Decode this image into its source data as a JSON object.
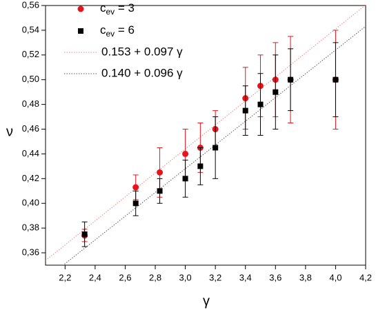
{
  "chart_data": {
    "type": "scatter",
    "x_label": "γ",
    "y_label": "ν",
    "x": [
      2.33,
      2.67,
      2.83,
      3.0,
      3.1,
      3.2,
      3.4,
      3.5,
      3.6,
      3.7,
      4.0
    ],
    "series": [
      {
        "name": "cev = 3",
        "color": "#e8141b",
        "marker": "circle",
        "values": [
          0.374,
          0.413,
          0.425,
          0.44,
          0.445,
          0.46,
          0.485,
          0.495,
          0.5,
          0.5,
          0.5
        ],
        "errors": [
          0.005,
          0.01,
          0.02,
          0.02,
          0.02,
          0.015,
          0.025,
          0.025,
          0.03,
          0.035,
          0.04
        ]
      },
      {
        "name": "cev = 6",
        "color": "#000000",
        "marker": "square",
        "values": [
          0.375,
          0.4,
          0.41,
          0.42,
          0.43,
          0.445,
          0.475,
          0.48,
          0.49,
          0.5,
          0.5
        ],
        "errors": [
          0.01,
          0.01,
          0.01,
          0.015,
          0.015,
          0.025,
          0.02,
          0.025,
          0.03,
          0.025,
          0.03
        ]
      }
    ],
    "fits": [
      {
        "name": "0.153 + 0.097 γ",
        "color": "#f08080",
        "intercept": 0.153,
        "slope": 0.097
      },
      {
        "name": "0.140 + 0.096 γ",
        "color": "#555555",
        "intercept": 0.14,
        "slope": 0.096
      }
    ],
    "xlim": [
      2.07,
      4.2
    ],
    "ylim": [
      0.35,
      0.56
    ],
    "xticks": [
      {
        "value": 2.2,
        "label": "2,2"
      },
      {
        "value": 2.4,
        "label": "2,4"
      },
      {
        "value": 2.6,
        "label": "2,6"
      },
      {
        "value": 2.8,
        "label": "2,8"
      },
      {
        "value": 3.0,
        "label": "3,0"
      },
      {
        "value": 3.2,
        "label": "3,2"
      },
      {
        "value": 3.4,
        "label": "3,4"
      },
      {
        "value": 3.6,
        "label": "3,6"
      },
      {
        "value": 3.8,
        "label": "3,8"
      },
      {
        "value": 4.0,
        "label": "4,0"
      },
      {
        "value": 4.2,
        "label": "4,2"
      }
    ],
    "yticks": [
      {
        "value": 0.36,
        "label": "0,36"
      },
      {
        "value": 0.38,
        "label": "0,38"
      },
      {
        "value": 0.4,
        "label": "0,40"
      },
      {
        "value": 0.42,
        "label": "0,42"
      },
      {
        "value": 0.44,
        "label": "0,44"
      },
      {
        "value": 0.46,
        "label": "0,46"
      },
      {
        "value": 0.48,
        "label": "0,48"
      },
      {
        "value": 0.5,
        "label": "0,50"
      },
      {
        "value": 0.52,
        "label": "0,52"
      },
      {
        "value": 0.54,
        "label": "0,54"
      },
      {
        "value": 0.56,
        "label": "0,56"
      }
    ]
  }
}
